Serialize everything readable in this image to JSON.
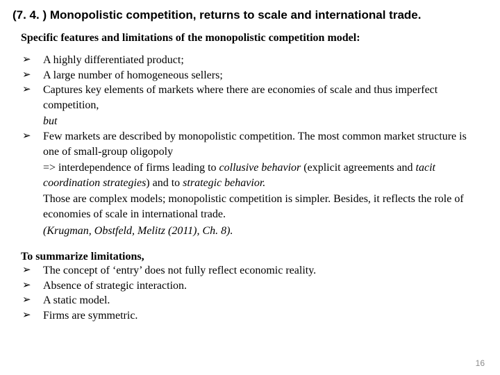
{
  "doc": {
    "title_fontsize": 17,
    "body_fontsize": 16,
    "pagenum_fontsize": 12,
    "font_family_title": "Arial",
    "font_family_body": "Times New Roman",
    "text_color": "#000000",
    "background_color": "#ffffff",
    "pagenum_color": "#8a8a8a",
    "bullet_glyph": "➢"
  },
  "title": "(7. 4. ) Monopolistic competition, returns to scale and international trade.",
  "subtitle": "Specific features and limitations of the monopolistic competition model:",
  "features": [
    {
      "text": "A highly differentiated product;"
    },
    {
      "text": "A large number of homogeneous sellers;"
    },
    {
      "text": "Captures key elements of markets where there are economies of scale and thus imperfect competition,",
      "tail_italic": "but"
    },
    {
      "text_pre": "Few markets are described by monopolistic competition. The most common market structure is one of small-group oligopoly",
      "arrow_line_pre": "=> interdependence of firms leading to ",
      "arrow_line_em1": "collusive behavior ",
      "arrow_line_mid": " (explicit agreements and ",
      "arrow_line_em2": "tacit coordination strategies",
      "arrow_line_post": ") and to ",
      "arrow_line_em3": "strategic behavior.",
      "note": "Those are complex models; monopolistic competition is simpler. Besides, it reflects the role of economies of scale in international trade.",
      "citation": "(Krugman, Obstfeld, Melitz (2011), Ch. 8)."
    }
  ],
  "summary_lead": "To summarize limitations,",
  "limitations": [
    "The concept of ‘entry’ does not fully reflect economic reality.",
    "Absence of strategic interaction.",
    "A static model.",
    "Firms are symmetric."
  ],
  "page_number": "16"
}
